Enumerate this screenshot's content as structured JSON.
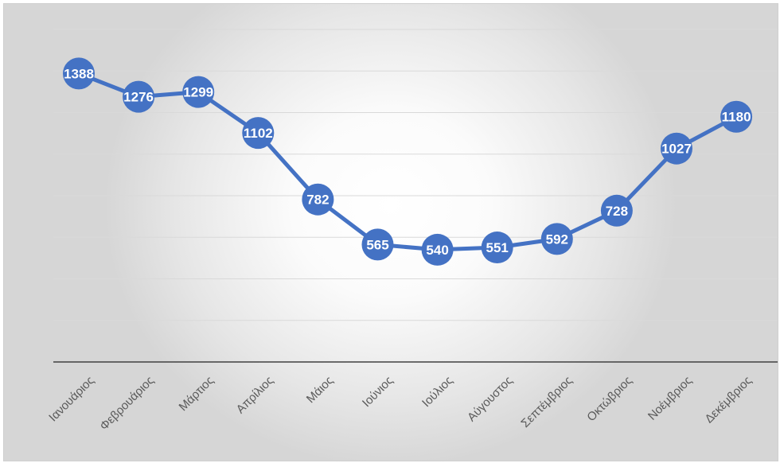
{
  "chart_data": {
    "type": "line",
    "categories": [
      "Ιανουάριος",
      "Φεβρουάριος",
      "Μάρτιος",
      "Απρίλιος",
      "Μάιος",
      "Ιούνιος",
      "Ιούλιος",
      "Αύγουστος",
      "Σεπτέμβριος",
      "Οκτώβριος",
      "Νοέμβριος",
      "Δεκέμβριος"
    ],
    "series": [
      {
        "values": [
          1388,
          1276,
          1299,
          1102,
          782,
          565,
          540,
          551,
          592,
          728,
          1027,
          1180
        ],
        "labels": [
          "1388",
          "1276",
          "1299",
          "1102",
          "782",
          "565",
          "540",
          "551",
          "592",
          "728",
          "1027",
          "1180"
        ]
      }
    ],
    "ylim": [
      0,
      1600
    ],
    "grid": true,
    "data_labels": "inside-markers",
    "colors": {
      "series": "#4472c4",
      "grid": "#d9d9d9",
      "axis": "#404040",
      "label": "#ffffff"
    }
  }
}
